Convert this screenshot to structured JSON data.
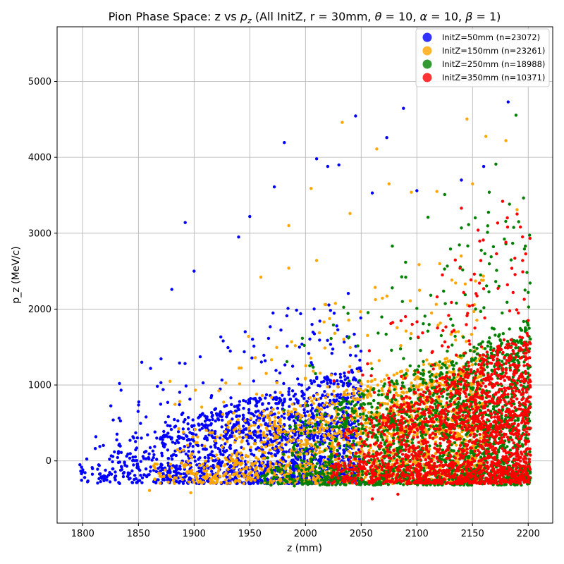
{
  "chart_data": {
    "type": "scatter",
    "title": "Pion Phase Space: z vs p_z (All InitZ, r = 30mm, θ = 10, α = 10, β = 1)",
    "title_parts": {
      "prefix": "Pion Phase Space: z vs ",
      "p_base": "p",
      "p_sub": "z",
      "middle": " (All InitZ, r = 30mm, ",
      "theta": "θ",
      "eq1": " = 10, ",
      "alpha": "α",
      "eq2": " = 10, ",
      "beta": "β",
      "eq3": " = 1)"
    },
    "xlabel": "z (mm)",
    "ylabel": "p_z (MeV/c)",
    "xlim": [
      1777,
      2222
    ],
    "ylim": [
      -820,
      5720
    ],
    "xticks": [
      1800,
      1850,
      1900,
      1950,
      2000,
      2050,
      2100,
      2150,
      2200
    ],
    "yticks": [
      0,
      1000,
      2000,
      3000,
      4000,
      5000
    ],
    "grid": true,
    "legend_position": "top-right",
    "series": [
      {
        "name": "InitZ=50mm (n=23072)",
        "color": "#0000ff",
        "z_range": [
          1797,
          2050
        ],
        "pz_typical_range": [
          -300,
          1000
        ],
        "points": [
          [
            1892,
            3140
          ],
          [
            1981,
            4195
          ],
          [
            2045,
            4545
          ],
          [
            2088,
            4645
          ],
          [
            2073,
            4260
          ],
          [
            2182,
            4730
          ],
          [
            2010,
            3980
          ],
          [
            2020,
            3880
          ],
          [
            1972,
            3610
          ],
          [
            1950,
            3220
          ],
          [
            1940,
            2950
          ],
          [
            1900,
            2500
          ],
          [
            1853,
            1300
          ],
          [
            1880,
            2260
          ],
          [
            1833,
            1020
          ],
          [
            2030,
            3900
          ],
          [
            2060,
            3530
          ],
          [
            2100,
            3560
          ],
          [
            2140,
            3700
          ],
          [
            2160,
            3880
          ]
        ]
      },
      {
        "name": "InitZ=150mm (n=23261)",
        "color": "#ffa500",
        "z_range": [
          1860,
          2160
        ],
        "pz_typical_range": [
          -300,
          1200
        ],
        "points": [
          [
            2033,
            4460
          ],
          [
            2145,
            4505
          ],
          [
            2162,
            4275
          ],
          [
            2064,
            4110
          ],
          [
            2180,
            4220
          ],
          [
            2005,
            3590
          ],
          [
            2040,
            3260
          ],
          [
            1985,
            3100
          ],
          [
            2075,
            3650
          ],
          [
            2010,
            2640
          ],
          [
            1960,
            2420
          ],
          [
            1985,
            2540
          ],
          [
            1860,
            -390
          ],
          [
            1897,
            -420
          ],
          [
            2190,
            3310
          ],
          [
            2118,
            3550
          ],
          [
            2150,
            3650
          ],
          [
            2095,
            3540
          ]
        ]
      },
      {
        "name": "InitZ=250mm (n=18988)",
        "color": "#008000",
        "z_range": [
          1960,
          2202
        ],
        "pz_typical_range": [
          -320,
          1500
        ],
        "points": [
          [
            2189,
            4555
          ],
          [
            2171,
            3910
          ],
          [
            2165,
            3540
          ],
          [
            2125,
            3510
          ],
          [
            2140,
            3070
          ],
          [
            2110,
            3210
          ],
          [
            2180,
            2860
          ],
          [
            2078,
            2830
          ],
          [
            2090,
            2420
          ],
          [
            2200,
            2220
          ],
          [
            2100,
            2010
          ],
          [
            1990,
            -330
          ]
        ]
      },
      {
        "name": "InitZ=350mm (n=10371)",
        "color": "#ff0000",
        "z_range": [
          2020,
          2202
        ],
        "pz_typical_range": [
          -300,
          1400
        ],
        "points": [
          [
            2177,
            3420
          ],
          [
            2155,
            3040
          ],
          [
            2180,
            2880
          ],
          [
            2195,
            2640
          ],
          [
            2160,
            2270
          ],
          [
            2140,
            3330
          ],
          [
            2060,
            -500
          ],
          [
            2083,
            -440
          ],
          [
            2150,
            2050
          ],
          [
            2200,
            1850
          ]
        ]
      }
    ]
  }
}
